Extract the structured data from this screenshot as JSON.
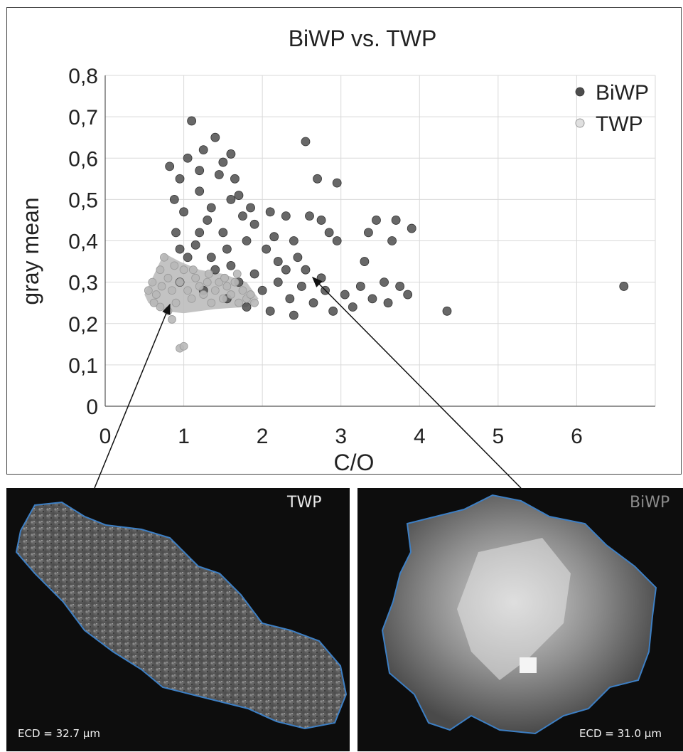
{
  "chart_data": {
    "type": "scatter",
    "title": "BiWP vs. TWP",
    "xlabel": "C/O",
    "ylabel": "gray mean",
    "xlim": [
      0,
      7
    ],
    "ylim": [
      0,
      0.8
    ],
    "x_ticks": [
      "0",
      "1",
      "2",
      "3",
      "4",
      "5",
      "6"
    ],
    "y_ticks": [
      "0",
      "0,1",
      "0,2",
      "0,3",
      "0,4",
      "0,5",
      "0,6",
      "0,7",
      "0,8"
    ],
    "grid": true,
    "legend_position": "top-right",
    "series": [
      {
        "name": "BiWP",
        "color": "#4d4d4d",
        "points": [
          [
            1.1,
            0.69
          ],
          [
            1.4,
            0.65
          ],
          [
            2.55,
            0.64
          ],
          [
            1.6,
            0.61
          ],
          [
            1.25,
            0.62
          ],
          [
            1.05,
            0.6
          ],
          [
            0.82,
            0.58
          ],
          [
            1.2,
            0.57
          ],
          [
            0.95,
            0.55
          ],
          [
            2.7,
            0.55
          ],
          [
            2.95,
            0.54
          ],
          [
            1.45,
            0.56
          ],
          [
            1.7,
            0.51
          ],
          [
            1.85,
            0.48
          ],
          [
            2.1,
            0.47
          ],
          [
            2.3,
            0.46
          ],
          [
            2.6,
            0.46
          ],
          [
            2.75,
            0.45
          ],
          [
            2.85,
            0.42
          ],
          [
            3.45,
            0.45
          ],
          [
            3.7,
            0.45
          ],
          [
            3.9,
            0.43
          ],
          [
            3.35,
            0.42
          ],
          [
            3.65,
            0.4
          ],
          [
            2.95,
            0.4
          ],
          [
            3.3,
            0.35
          ],
          [
            2.45,
            0.36
          ],
          [
            2.3,
            0.33
          ],
          [
            2.05,
            0.38
          ],
          [
            1.8,
            0.4
          ],
          [
            1.5,
            0.42
          ],
          [
            1.3,
            0.45
          ],
          [
            1.0,
            0.47
          ],
          [
            0.9,
            0.42
          ],
          [
            1.15,
            0.39
          ],
          [
            1.35,
            0.36
          ],
          [
            1.6,
            0.34
          ],
          [
            1.9,
            0.32
          ],
          [
            2.2,
            0.3
          ],
          [
            2.5,
            0.29
          ],
          [
            2.8,
            0.28
          ],
          [
            3.05,
            0.27
          ],
          [
            3.25,
            0.29
          ],
          [
            3.4,
            0.26
          ],
          [
            3.55,
            0.3
          ],
          [
            3.75,
            0.29
          ],
          [
            3.85,
            0.27
          ],
          [
            2.65,
            0.25
          ],
          [
            2.9,
            0.23
          ],
          [
            2.4,
            0.22
          ],
          [
            2.1,
            0.23
          ],
          [
            1.8,
            0.24
          ],
          [
            1.55,
            0.26
          ],
          [
            1.25,
            0.28
          ],
          [
            0.95,
            0.3
          ],
          [
            1.05,
            0.36
          ],
          [
            1.4,
            0.33
          ],
          [
            1.7,
            0.3
          ],
          [
            2.0,
            0.28
          ],
          [
            2.35,
            0.26
          ],
          [
            3.15,
            0.24
          ],
          [
            3.6,
            0.25
          ],
          [
            4.35,
            0.23
          ],
          [
            6.6,
            0.29
          ],
          [
            1.6,
            0.5
          ],
          [
            1.9,
            0.44
          ],
          [
            2.15,
            0.41
          ],
          [
            2.4,
            0.4
          ],
          [
            1.2,
            0.52
          ],
          [
            0.88,
            0.5
          ],
          [
            1.35,
            0.48
          ],
          [
            1.75,
            0.46
          ],
          [
            2.2,
            0.35
          ],
          [
            2.55,
            0.33
          ],
          [
            2.75,
            0.31
          ],
          [
            1.55,
            0.38
          ],
          [
            1.2,
            0.42
          ],
          [
            0.95,
            0.38
          ],
          [
            1.65,
            0.55
          ],
          [
            1.5,
            0.59
          ]
        ]
      },
      {
        "name": "TWP",
        "color": "#b8b8b8",
        "points": [
          [
            0.55,
            0.28
          ],
          [
            0.6,
            0.3
          ],
          [
            0.65,
            0.27
          ],
          [
            0.7,
            0.33
          ],
          [
            0.75,
            0.36
          ],
          [
            0.8,
            0.31
          ],
          [
            0.85,
            0.28
          ],
          [
            0.9,
            0.25
          ],
          [
            0.95,
            0.3
          ],
          [
            1.0,
            0.33
          ],
          [
            1.05,
            0.28
          ],
          [
            1.1,
            0.26
          ],
          [
            1.15,
            0.31
          ],
          [
            1.2,
            0.29
          ],
          [
            1.25,
            0.27
          ],
          [
            1.3,
            0.3
          ],
          [
            1.35,
            0.25
          ],
          [
            1.4,
            0.28
          ],
          [
            1.45,
            0.3
          ],
          [
            1.5,
            0.26
          ],
          [
            1.55,
            0.29
          ],
          [
            1.6,
            0.27
          ],
          [
            1.65,
            0.3
          ],
          [
            1.7,
            0.25
          ],
          [
            1.75,
            0.28
          ],
          [
            1.8,
            0.26
          ],
          [
            1.85,
            0.27
          ],
          [
            1.9,
            0.25
          ],
          [
            0.7,
            0.24
          ],
          [
            0.8,
            0.23
          ],
          [
            0.85,
            0.21
          ],
          [
            0.95,
            0.14
          ],
          [
            1.0,
            0.145
          ],
          [
            0.62,
            0.25
          ],
          [
            0.72,
            0.29
          ],
          [
            0.88,
            0.34
          ],
          [
            1.12,
            0.33
          ],
          [
            1.32,
            0.32
          ],
          [
            1.52,
            0.31
          ],
          [
            1.68,
            0.32
          ]
        ]
      }
    ]
  },
  "panels": {
    "twp": {
      "label": "TWP",
      "ecd": "ECD = 32.7 µm"
    },
    "biwp": {
      "label": "BiWP",
      "ecd": "ECD = 31.0 µm"
    }
  }
}
